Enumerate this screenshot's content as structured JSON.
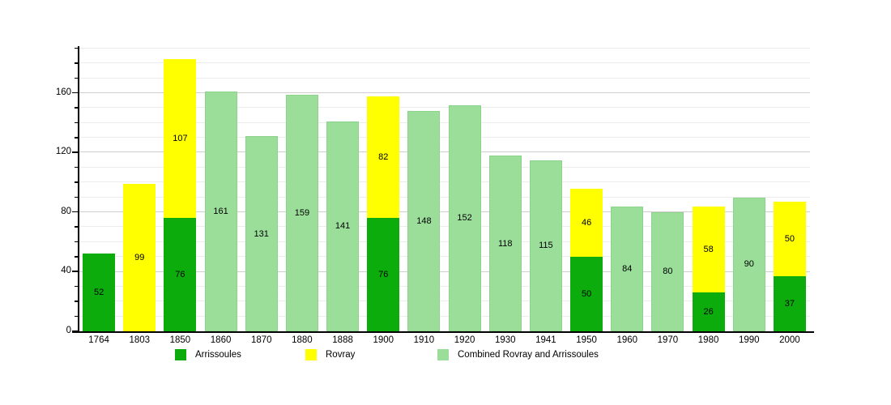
{
  "chart_data": {
    "type": "bar",
    "stacked": true,
    "title": "",
    "xlabel": "",
    "ylabel": "",
    "categories": [
      "1764",
      "1803",
      "1850",
      "1860",
      "1870",
      "1880",
      "1888",
      "1900",
      "1910",
      "1920",
      "1930",
      "1941",
      "1950",
      "1960",
      "1970",
      "1980",
      "1990",
      "2000"
    ],
    "series": [
      {
        "name": "Arrissoules",
        "color": "#0cac0c",
        "values": [
          52,
          0,
          76,
          0,
          0,
          0,
          0,
          76,
          0,
          0,
          0,
          0,
          50,
          0,
          0,
          26,
          0,
          37
        ]
      },
      {
        "name": "Rovray",
        "color": "#ffff00",
        "values": [
          0,
          99,
          107,
          0,
          0,
          0,
          0,
          82,
          0,
          0,
          0,
          0,
          46,
          0,
          0,
          58,
          0,
          50
        ]
      },
      {
        "name": "Combined Rovray and Arrissoules",
        "color": "#9ade9a",
        "values": [
          0,
          0,
          0,
          161,
          131,
          159,
          141,
          0,
          148,
          152,
          118,
          115,
          0,
          84,
          80,
          0,
          90,
          0
        ]
      }
    ],
    "ylim": [
      0,
      191
    ],
    "yticks": [
      0,
      40,
      80,
      120,
      160
    ],
    "minor_grid_step": 10,
    "grid": true,
    "legend_position": "bottom",
    "colors": {
      "axis": "#000000",
      "major_gridline": "#cfcfcf",
      "minor_gridline": "#ececec",
      "combined_bar_border": "#8cd48c",
      "background": "#ffffff"
    }
  }
}
